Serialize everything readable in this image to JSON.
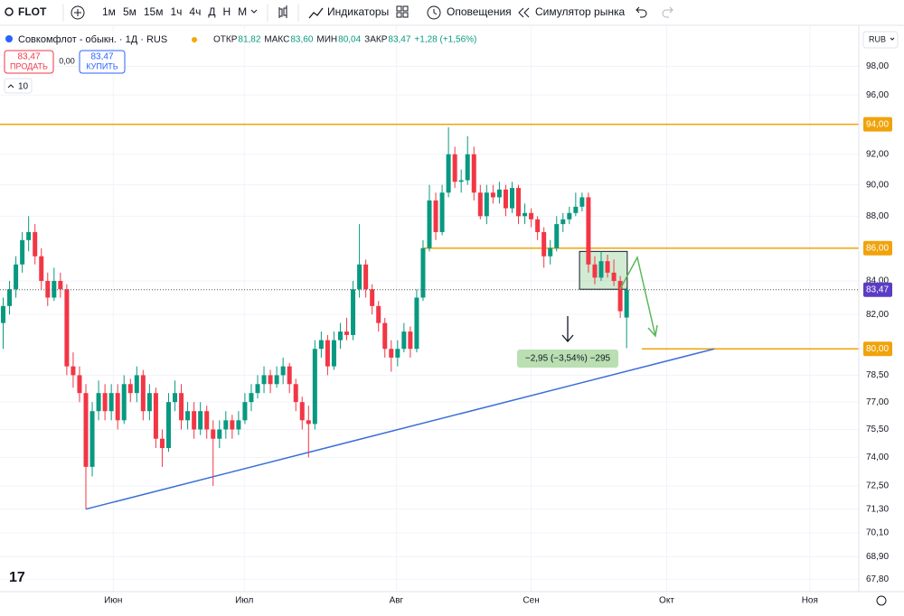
{
  "toolbar": {
    "symbol": "FLOT",
    "intervals": [
      "1м",
      "5м",
      "15м",
      "1ч",
      "4ч",
      "Д",
      "Н",
      "М"
    ],
    "indicators": "Индикаторы",
    "alerts": "Оповещения",
    "replay": "Симулятор рынка"
  },
  "legend": {
    "title": "Совкомфлот - обыкн. · 1Д · RUS",
    "open_label": "ОТКР",
    "open": "81,82",
    "high_label": "МАКС",
    "high": "83,60",
    "low_label": "МИН",
    "low": "80,04",
    "close_label": "ЗАКР",
    "close": "83,47",
    "change": "+1,28 (+1,56%)",
    "sell_price": "83,47",
    "sell": "ПРОДАТЬ",
    "spread": "0,00",
    "buy_price": "83,47",
    "buy": "КУПИТЬ",
    "volume_toggle": "10"
  },
  "currency": "RUB",
  "chart_data": {
    "type": "candlestick",
    "up_color": "#089981",
    "down_color": "#f23645",
    "log_scale": true,
    "grid": true,
    "xlim": [
      -0.5,
      134.5
    ],
    "ylim": [
      67.2,
      99.5
    ],
    "xticks": [
      {
        "value": 17.3,
        "label": "Июн"
      },
      {
        "value": 37.9,
        "label": "Июл"
      },
      {
        "value": 61.8,
        "label": "Авг"
      },
      {
        "value": 83,
        "label": "Сен"
      },
      {
        "value": 104.3,
        "label": "Окт"
      },
      {
        "value": 126.8,
        "label": "Ноя"
      }
    ],
    "yticks": [
      {
        "value": 98,
        "label": "98,00"
      },
      {
        "value": 96,
        "label": "96,00"
      },
      {
        "value": 92,
        "label": "92,00"
      },
      {
        "value": 90,
        "label": "90,00"
      },
      {
        "value": 88,
        "label": "88,00"
      },
      {
        "value": 84,
        "label": "84,00"
      },
      {
        "value": 82,
        "label": "82,00"
      },
      {
        "value": 78.5,
        "label": "78,50"
      },
      {
        "value": 77,
        "label": "77,00"
      },
      {
        "value": 75.5,
        "label": "75,50"
      },
      {
        "value": 74,
        "label": "74,00"
      },
      {
        "value": 72.5,
        "label": "72,50"
      },
      {
        "value": 71.3,
        "label": "71,30"
      },
      {
        "value": 70.1,
        "label": "70,10"
      },
      {
        "value": 68.9,
        "label": "68,90"
      },
      {
        "value": 67.8,
        "label": "67,80"
      }
    ],
    "candles": [
      [
        81.5,
        83,
        80,
        82.5
      ],
      [
        82.5,
        84,
        82,
        83.5
      ],
      [
        83.5,
        85.5,
        83,
        85
      ],
      [
        85,
        87,
        84.5,
        86.5
      ],
      [
        86.5,
        88,
        85.8,
        87
      ],
      [
        87,
        87.5,
        85,
        85.5
      ],
      [
        85.5,
        86,
        83.5,
        84
      ],
      [
        84,
        84.5,
        82.5,
        83
      ],
      [
        83,
        84.8,
        82.8,
        84
      ],
      [
        84,
        84.5,
        83,
        83.5
      ],
      [
        83.5,
        83.8,
        78.5,
        79
      ],
      [
        79,
        79.8,
        77.8,
        78.5
      ],
      [
        78.5,
        79,
        77,
        77.5
      ],
      [
        77.5,
        78,
        71.3,
        73.5
      ],
      [
        73.5,
        77,
        73,
        76.5
      ],
      [
        76.5,
        78.2,
        76,
        77.5
      ],
      [
        77.5,
        78,
        76,
        76.5
      ],
      [
        76.5,
        78,
        76,
        77.5
      ],
      [
        77.5,
        78,
        75.5,
        76
      ],
      [
        76,
        78.5,
        75.8,
        78
      ],
      [
        78,
        78.3,
        77,
        77.5
      ],
      [
        77.5,
        79,
        77,
        78.5
      ],
      [
        78.5,
        78.8,
        76,
        76.5
      ],
      [
        76.5,
        78,
        76,
        77.5
      ],
      [
        77.5,
        77.8,
        74.5,
        75
      ],
      [
        75,
        75.5,
        73.5,
        74.5
      ],
      [
        74.5,
        77.5,
        74.3,
        77
      ],
      [
        77,
        78.2,
        76.5,
        77.5
      ],
      [
        77.5,
        78,
        75.5,
        76
      ],
      [
        76,
        77,
        75.5,
        76.5
      ],
      [
        76.5,
        77,
        75,
        75.5
      ],
      [
        75.5,
        77,
        75.2,
        76.5
      ],
      [
        76.5,
        76.8,
        75,
        75.5
      ],
      [
        75.5,
        76,
        72.5,
        75
      ],
      [
        75,
        76,
        74.5,
        75.5
      ],
      [
        75.5,
        76.5,
        75,
        76
      ],
      [
        76,
        76.3,
        75,
        75.5
      ],
      [
        75.5,
        76.5,
        75.2,
        76
      ],
      [
        76,
        77.5,
        75.8,
        77
      ],
      [
        77,
        78,
        76.5,
        77.5
      ],
      [
        77.5,
        78.5,
        77.2,
        78
      ],
      [
        78,
        79,
        77.5,
        78.5
      ],
      [
        78.5,
        78.8,
        77.5,
        78
      ],
      [
        78,
        79,
        77.8,
        78.5
      ],
      [
        78.5,
        79.5,
        78,
        79
      ],
      [
        79,
        79.2,
        77.5,
        78
      ],
      [
        78,
        78.3,
        76.5,
        77
      ],
      [
        77,
        77.3,
        75.5,
        76
      ],
      [
        76,
        76.8,
        74,
        75.8
      ],
      [
        75.8,
        80.5,
        75.5,
        80
      ],
      [
        80,
        81,
        79.5,
        80.5
      ],
      [
        80.5,
        80.8,
        78.5,
        79
      ],
      [
        79,
        81,
        78.8,
        80.5
      ],
      [
        80.5,
        81.5,
        80,
        81
      ],
      [
        81,
        81.8,
        80.5,
        80.8
      ],
      [
        80.8,
        84,
        80.5,
        83.5
      ],
      [
        83.5,
        87.5,
        83,
        85
      ],
      [
        85,
        85.3,
        83,
        83.5
      ],
      [
        83.5,
        83.8,
        82,
        82.5
      ],
      [
        82.5,
        82.8,
        81,
        81.5
      ],
      [
        81.5,
        81.8,
        79.5,
        80
      ],
      [
        80,
        80.5,
        78.7,
        79.5
      ],
      [
        79.5,
        80.5,
        79,
        80
      ],
      [
        80,
        81.5,
        79.8,
        81
      ],
      [
        81,
        81.3,
        79.5,
        80
      ],
      [
        80,
        83.5,
        79.8,
        83
      ],
      [
        83,
        86.5,
        82.8,
        86
      ],
      [
        86,
        90,
        85.8,
        89
      ],
      [
        89,
        89.5,
        86.5,
        87
      ],
      [
        87,
        90,
        86.8,
        89.5
      ],
      [
        89.5,
        93.8,
        89.2,
        92
      ],
      [
        92,
        92.5,
        89.8,
        90.2
      ],
      [
        90.2,
        91,
        89.5,
        90.3
      ],
      [
        90.3,
        93.2,
        90,
        92
      ],
      [
        92,
        92.5,
        89,
        89.5
      ],
      [
        89.5,
        90,
        87.8,
        88
      ],
      [
        88,
        90,
        87.5,
        89.5
      ],
      [
        89.5,
        90,
        88.8,
        89.2
      ],
      [
        89.2,
        90.2,
        88.8,
        89.7
      ],
      [
        89.7,
        90,
        88,
        88.5
      ],
      [
        88.5,
        90.2,
        88.2,
        89.8
      ],
      [
        89.8,
        90,
        87.5,
        88
      ],
      [
        88,
        88.8,
        87.5,
        88.2
      ],
      [
        88.2,
        88.5,
        87.3,
        87.8
      ],
      [
        87.8,
        88,
        86.5,
        87
      ],
      [
        87,
        87.3,
        84.8,
        85.5
      ],
      [
        85.5,
        86.5,
        85,
        86
      ],
      [
        86,
        88,
        85.8,
        87.5
      ],
      [
        87.5,
        88.2,
        87,
        87.8
      ],
      [
        87.8,
        88.6,
        87.5,
        88.2
      ],
      [
        88.2,
        89.5,
        88,
        88.6
      ],
      [
        88.6,
        89.5,
        88.3,
        89.2
      ],
      [
        89.2,
        89.5,
        84.5,
        85
      ],
      [
        85,
        85.5,
        83.8,
        84.2
      ],
      [
        84.2,
        85.8,
        84,
        85.2
      ],
      [
        85.2,
        85.6,
        84.2,
        84.5
      ],
      [
        84.5,
        85.3,
        83.7,
        84
      ],
      [
        84,
        84.3,
        81.8,
        82.19
      ],
      [
        81.82,
        83.6,
        80.04,
        83.47
      ]
    ],
    "last_price": {
      "value": 83.47,
      "label": "83,47"
    },
    "levels": [
      {
        "value": 94,
        "label": "94,00",
        "from": -0.5
      },
      {
        "value": 86,
        "label": "86,00",
        "from": 66
      },
      {
        "value": 80,
        "label": "80,00",
        "from": 100.4
      }
    ],
    "trend_line": [
      [
        13,
        71.3
      ],
      [
        111.8,
        80
      ]
    ],
    "box": {
      "x": [
        90.6,
        98.1
      ],
      "y": [
        83.5,
        85.8
      ]
    },
    "measure": "−2,95 (−3,54%) −295"
  }
}
